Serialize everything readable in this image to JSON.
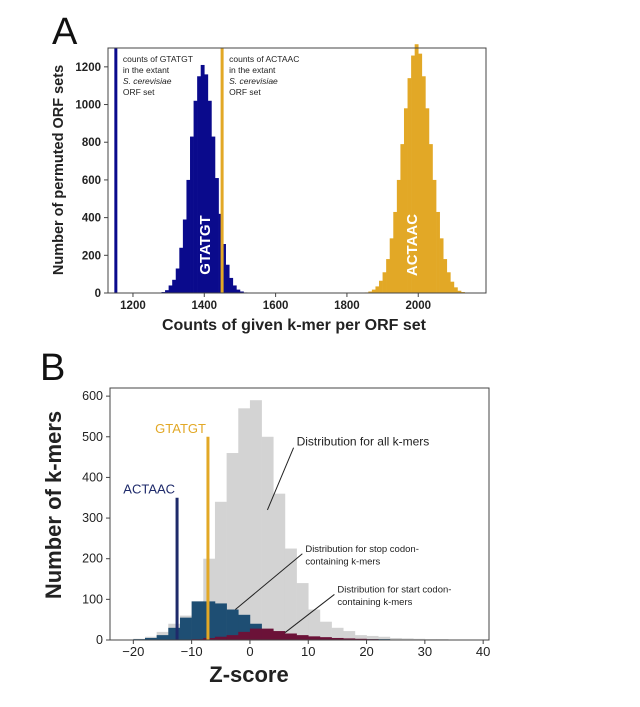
{
  "colors": {
    "gtatgt": "#0a0a8c",
    "actaac": "#e2a826",
    "all_kmers": "#d3d3d3",
    "stop_kmers": "#1e4e73",
    "start_kmers": "#6b1238",
    "label_gtatgt_B": "#e2a826",
    "label_actaac_B": "#1e2a6a"
  },
  "chart_data": [
    {
      "panel": "A",
      "type": "bar",
      "panel_label": "A",
      "title": "",
      "xlabel": "Counts of given k-mer per ORF set",
      "ylabel": "Number of permuted ORF sets",
      "xlim": [
        1130,
        2190
      ],
      "ylim": [
        0,
        1300
      ],
      "xticks": [
        1200,
        1400,
        1600,
        1800,
        2000
      ],
      "yticks": [
        0,
        200,
        400,
        600,
        800,
        1000,
        1200
      ],
      "grid": false,
      "bin_width": 10,
      "series": [
        {
          "name": "GTATGT",
          "color": "#0a0a8c",
          "bins_start": [
            1280,
            1290,
            1300,
            1310,
            1320,
            1330,
            1340,
            1350,
            1360,
            1370,
            1380,
            1390,
            1400,
            1410,
            1420,
            1430,
            1440,
            1450,
            1460,
            1470,
            1480,
            1490,
            1500,
            1510,
            1520
          ],
          "counts": [
            5,
            15,
            40,
            70,
            130,
            240,
            390,
            600,
            830,
            1020,
            1150,
            1210,
            1160,
            1020,
            830,
            610,
            420,
            260,
            150,
            80,
            40,
            18,
            8,
            3,
            1
          ]
        },
        {
          "name": "ACTAAC",
          "color": "#e2a826",
          "bins_start": [
            1850,
            1860,
            1870,
            1880,
            1890,
            1900,
            1910,
            1920,
            1930,
            1940,
            1950,
            1960,
            1970,
            1980,
            1990,
            2000,
            2010,
            2020,
            2030,
            2040,
            2050,
            2060,
            2070,
            2080,
            2090,
            2100,
            2110,
            2120
          ],
          "counts": [
            3,
            8,
            18,
            35,
            65,
            110,
            180,
            290,
            430,
            600,
            790,
            980,
            1140,
            1260,
            1320,
            1270,
            1150,
            980,
            790,
            600,
            430,
            290,
            180,
            110,
            60,
            30,
            12,
            5
          ]
        }
      ],
      "bar_labels": [
        {
          "text": "GTATGT",
          "at": 1405,
          "series": "GTATGT"
        },
        {
          "text": "ACTAAC",
          "at": 1985,
          "series": "ACTAAC"
        }
      ],
      "vlines": [
        {
          "x": 1152,
          "color": "#0a0a8c",
          "label_lines": [
            "counts of GTATGT",
            "in the extant",
            "S. cerevisiae",
            "ORF set"
          ]
        },
        {
          "x": 1450,
          "color": "#e2a826",
          "label_lines": [
            "counts of ACTAAC",
            "in the extant",
            "S. cerevisiae",
            "ORF set"
          ]
        }
      ]
    },
    {
      "panel": "B",
      "type": "bar",
      "panel_label": "B",
      "title": "",
      "xlabel": "Z-score",
      "ylabel": "Number of k-mers",
      "xlim": [
        -24,
        41
      ],
      "ylim": [
        0,
        620
      ],
      "xticks": [
        -20,
        -10,
        0,
        10,
        20,
        30,
        40
      ],
      "yticks": [
        0,
        100,
        200,
        300,
        400,
        500,
        600
      ],
      "grid": false,
      "bin_width": 2,
      "series": [
        {
          "name": "Distribution for all k-mers",
          "color": "#d3d3d3",
          "bins_start": [
            -20,
            -18,
            -16,
            -14,
            -12,
            -10,
            -8,
            -6,
            -4,
            -2,
            0,
            2,
            4,
            6,
            8,
            10,
            12,
            14,
            16,
            18,
            20,
            22,
            24,
            26,
            28,
            30,
            32,
            34,
            36
          ],
          "counts": [
            3,
            8,
            20,
            40,
            60,
            95,
            200,
            340,
            460,
            570,
            590,
            500,
            360,
            225,
            140,
            75,
            45,
            30,
            22,
            12,
            10,
            8,
            5,
            4,
            3,
            2,
            2,
            1,
            1
          ]
        },
        {
          "name": "Distribution for stop codon-containing k-mers",
          "color": "#1e4e73",
          "bins_start": [
            -20,
            -18,
            -16,
            -14,
            -12,
            -10,
            -8,
            -6,
            -4,
            -2,
            0,
            2,
            4,
            6,
            8,
            10,
            12,
            14,
            16,
            18,
            20,
            22,
            24,
            26,
            28,
            30,
            32,
            34,
            36
          ],
          "counts": [
            2,
            5,
            12,
            30,
            55,
            95,
            95,
            90,
            75,
            62,
            40,
            25,
            15,
            10,
            7,
            5,
            4,
            3,
            3,
            2,
            2,
            2,
            1,
            1,
            1,
            1,
            1,
            1,
            1
          ]
        },
        {
          "name": "Distribution for start codon-containing k-mers",
          "color": "#6b1238",
          "bins_start": [
            -10,
            -8,
            -6,
            -4,
            -2,
            0,
            2,
            4,
            6,
            8,
            10,
            12,
            14,
            16,
            18,
            20
          ],
          "counts": [
            2,
            5,
            8,
            12,
            20,
            28,
            28,
            22,
            16,
            12,
            9,
            7,
            5,
            4,
            3,
            2
          ]
        }
      ],
      "vlines": [
        {
          "x": -12.5,
          "color": "#1e2a6a",
          "top": 350,
          "label": "ACTAAC"
        },
        {
          "x": -7.2,
          "color": "#e2a826",
          "top": 500,
          "label": "GTATGT"
        }
      ],
      "annotations": [
        {
          "lines": [
            "Distribution for all k-mers"
          ],
          "text_x": 8,
          "text_y": 478,
          "arrow_to_x": 3,
          "arrow_to_y": 320
        },
        {
          "lines": [
            "Distribution for stop codon-",
            "containing k-mers"
          ],
          "text_x": 9.5,
          "text_y": 217,
          "arrow_to_x": -2.5,
          "arrow_to_y": 75
        },
        {
          "lines": [
            "Distribution for start codon-",
            "containing k-mers"
          ],
          "text_x": 15,
          "text_y": 117,
          "arrow_to_x": 6,
          "arrow_to_y": 18
        }
      ]
    }
  ]
}
